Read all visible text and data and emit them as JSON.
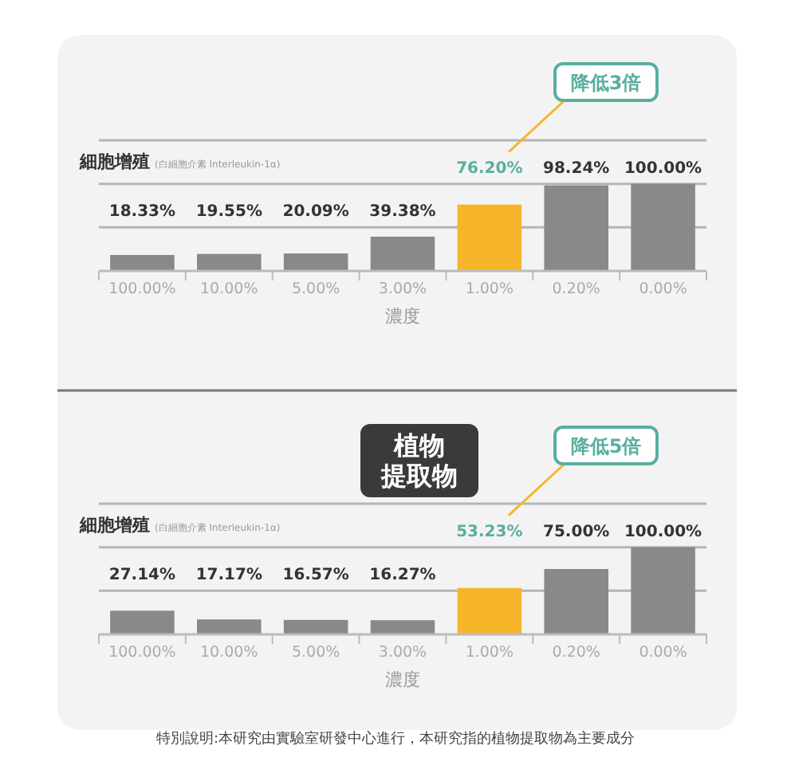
{
  "chart_data": [
    {
      "type": "bar",
      "ylabel": "細胞增殖",
      "subtitle": "(白細胞介素 Interleukin-1α)",
      "xlabel": "濃度",
      "categories": [
        "100.00%",
        "10.00%",
        "5.00%",
        "3.00%",
        "1.00%",
        "0.20%",
        "0.00%"
      ],
      "values": [
        18.33,
        19.55,
        20.09,
        39.38,
        76.2,
        98.24,
        100
      ],
      "value_labels": [
        "18.33%",
        "19.55%",
        "20.09%",
        "39.38%",
        "76.20%",
        "98.24%",
        "100.00%"
      ],
      "colors": [
        "#898989",
        "#898989",
        "#898989",
        "#898989",
        "#f7b52c",
        "#898989",
        "#898989"
      ],
      "tick_labels": "x",
      "ref_lines": [
        {
          "axis": "y",
          "value": 50,
          "color": "#b5b5b5"
        }
      ],
      "annotations": [
        "降低3倍"
      ]
    },
    {
      "type": "bar",
      "title": "植物提取物",
      "ylabel": "細胞增殖",
      "subtitle": "(白細胞介素 Interleukin-1α)",
      "xlabel": "濃度",
      "categories": [
        "100.00%",
        "10.00%",
        "5.00%",
        "3.00%",
        "1.00%",
        "0.20%",
        "0.00%"
      ],
      "values": [
        27.14,
        17.17,
        16.57,
        16.27,
        53.23,
        75,
        100
      ],
      "value_labels": [
        "27.14%",
        "17.17%",
        "16.57%",
        "16.27%",
        "53.23%",
        "75.00%",
        "100.00%"
      ],
      "colors": [
        "#898989",
        "#898989",
        "#898989",
        "#898989",
        "#f7b52c",
        "#898989",
        "#898989"
      ],
      "tick_labels": "x",
      "ref_lines": [
        {
          "axis": "y",
          "value": 50,
          "color": "#b5b5b5"
        }
      ],
      "annotations": [
        "降低5倍",
        "特別說明:本研究由實驗室研發中心進行，本研究指的植物提取物為主要成分"
      ]
    }
  ]
}
